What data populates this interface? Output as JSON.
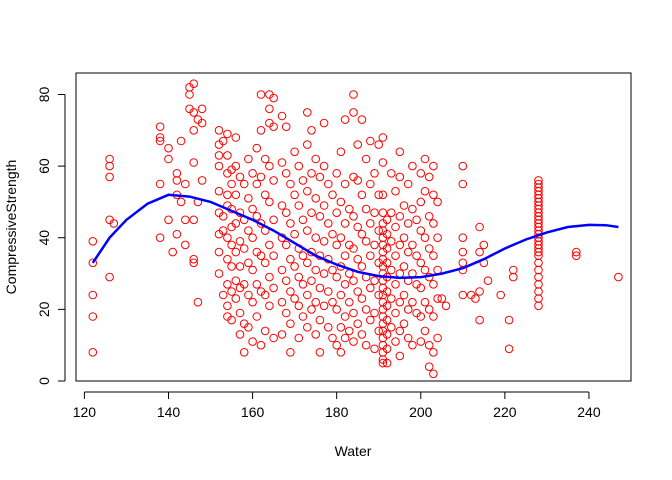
{
  "chart_data": {
    "type": "scatter",
    "xlabel": "Water",
    "ylabel": "CompressiveStrength",
    "xlim": [
      118,
      250
    ],
    "ylim": [
      0,
      86
    ],
    "xticks": [
      120,
      140,
      160,
      180,
      200,
      220,
      240
    ],
    "yticks": [
      0,
      20,
      40,
      60,
      80
    ],
    "point_color": "#ff0000",
    "line_color": "#0000ff",
    "grid": false,
    "smooth_curve": {
      "x": [
        122,
        126,
        130,
        135,
        140,
        145,
        150,
        155,
        160,
        165,
        170,
        175,
        180,
        185,
        190,
        195,
        200,
        205,
        210,
        215,
        220,
        225,
        230,
        235,
        240,
        244,
        247
      ],
      "y": [
        33,
        40,
        45,
        49.5,
        52,
        51.5,
        50,
        47.5,
        45,
        42,
        38.5,
        35,
        32.5,
        30.5,
        29.3,
        28.8,
        29,
        30,
        31.5,
        34,
        37,
        39.5,
        41.5,
        43,
        43.6,
        43.5,
        43
      ]
    },
    "points": [
      [
        122,
        39
      ],
      [
        122,
        33
      ],
      [
        122,
        24
      ],
      [
        122,
        18
      ],
      [
        122,
        8
      ],
      [
        126,
        62
      ],
      [
        126,
        60
      ],
      [
        126,
        57
      ],
      [
        126,
        45
      ],
      [
        126,
        29
      ],
      [
        127,
        44
      ],
      [
        138,
        71
      ],
      [
        138,
        68
      ],
      [
        138,
        67
      ],
      [
        138,
        55
      ],
      [
        138,
        40
      ],
      [
        140,
        65
      ],
      [
        140,
        62
      ],
      [
        140,
        45
      ],
      [
        141,
        36
      ],
      [
        142,
        58
      ],
      [
        142,
        56
      ],
      [
        142,
        52
      ],
      [
        142,
        41
      ],
      [
        143,
        67
      ],
      [
        143,
        50
      ],
      [
        144,
        55
      ],
      [
        144,
        45
      ],
      [
        144,
        38
      ],
      [
        145,
        82
      ],
      [
        145,
        80
      ],
      [
        145,
        76
      ],
      [
        146,
        83
      ],
      [
        146,
        75
      ],
      [
        146,
        70
      ],
      [
        146,
        61
      ],
      [
        146,
        45
      ],
      [
        146,
        34
      ],
      [
        146,
        33
      ],
      [
        147,
        73
      ],
      [
        147,
        50
      ],
      [
        147,
        22
      ],
      [
        148,
        76
      ],
      [
        148,
        72
      ],
      [
        148,
        56
      ],
      [
        152,
        70
      ],
      [
        152,
        66
      ],
      [
        152,
        63
      ],
      [
        152,
        60
      ],
      [
        152,
        53
      ],
      [
        152,
        47
      ],
      [
        152,
        41
      ],
      [
        152,
        36
      ],
      [
        152,
        30
      ],
      [
        153,
        67
      ],
      [
        153,
        46
      ],
      [
        153,
        42
      ],
      [
        153,
        24
      ],
      [
        154,
        69
      ],
      [
        154,
        63
      ],
      [
        154,
        58
      ],
      [
        154,
        52
      ],
      [
        154,
        49
      ],
      [
        154,
        40
      ],
      [
        154,
        34
      ],
      [
        154,
        27
      ],
      [
        154,
        21
      ],
      [
        154,
        18
      ],
      [
        155,
        59
      ],
      [
        155,
        55
      ],
      [
        155,
        48
      ],
      [
        155,
        43
      ],
      [
        155,
        38
      ],
      [
        155,
        32
      ],
      [
        155,
        25
      ],
      [
        155,
        17
      ],
      [
        156,
        68
      ],
      [
        156,
        60
      ],
      [
        156,
        52
      ],
      [
        156,
        44
      ],
      [
        156,
        36
      ],
      [
        156,
        28
      ],
      [
        156,
        23
      ],
      [
        157,
        57
      ],
      [
        157,
        47
      ],
      [
        157,
        39
      ],
      [
        157,
        32
      ],
      [
        157,
        26
      ],
      [
        157,
        19
      ],
      [
        157,
        13
      ],
      [
        158,
        55
      ],
      [
        158,
        45
      ],
      [
        158,
        37
      ],
      [
        158,
        27
      ],
      [
        158,
        16
      ],
      [
        158,
        8
      ],
      [
        159,
        62
      ],
      [
        159,
        51
      ],
      [
        159,
        42
      ],
      [
        159,
        33
      ],
      [
        159,
        24
      ],
      [
        159,
        15
      ],
      [
        160,
        58
      ],
      [
        160,
        48
      ],
      [
        160,
        40
      ],
      [
        160,
        31
      ],
      [
        160,
        22
      ],
      [
        160,
        11
      ],
      [
        161,
        65
      ],
      [
        161,
        55
      ],
      [
        161,
        46
      ],
      [
        161,
        36
      ],
      [
        161,
        27
      ],
      [
        161,
        18
      ],
      [
        162,
        80
      ],
      [
        162,
        70
      ],
      [
        162,
        57
      ],
      [
        162,
        44
      ],
      [
        162,
        35
      ],
      [
        162,
        25
      ],
      [
        162,
        10
      ],
      [
        163,
        62
      ],
      [
        163,
        52
      ],
      [
        163,
        42
      ],
      [
        163,
        33
      ],
      [
        163,
        24
      ],
      [
        163,
        14
      ],
      [
        164,
        80
      ],
      [
        164,
        76
      ],
      [
        164,
        72
      ],
      [
        164,
        60
      ],
      [
        164,
        50
      ],
      [
        164,
        38
      ],
      [
        164,
        29
      ],
      [
        164,
        21
      ],
      [
        165,
        79
      ],
      [
        165,
        71
      ],
      [
        165,
        56
      ],
      [
        165,
        45
      ],
      [
        165,
        35
      ],
      [
        165,
        26
      ],
      [
        165,
        12
      ],
      [
        167,
        74
      ],
      [
        167,
        61
      ],
      [
        167,
        49
      ],
      [
        167,
        40
      ],
      [
        167,
        31
      ],
      [
        167,
        22
      ],
      [
        167,
        13
      ],
      [
        168,
        71
      ],
      [
        168,
        58
      ],
      [
        168,
        47
      ],
      [
        168,
        38
      ],
      [
        168,
        28
      ],
      [
        168,
        19
      ],
      [
        169,
        55
      ],
      [
        169,
        44
      ],
      [
        169,
        34
      ],
      [
        169,
        25
      ],
      [
        169,
        16
      ],
      [
        169,
        8
      ],
      [
        170,
        64
      ],
      [
        170,
        52
      ],
      [
        170,
        41
      ],
      [
        170,
        32
      ],
      [
        170,
        23
      ],
      [
        171,
        60
      ],
      [
        171,
        49
      ],
      [
        171,
        37
      ],
      [
        171,
        29
      ],
      [
        171,
        21
      ],
      [
        171,
        12
      ],
      [
        172,
        56
      ],
      [
        172,
        45
      ],
      [
        172,
        35
      ],
      [
        172,
        27
      ],
      [
        172,
        18
      ],
      [
        173,
        75
      ],
      [
        173,
        66
      ],
      [
        173,
        53
      ],
      [
        173,
        42
      ],
      [
        173,
        33
      ],
      [
        173,
        24
      ],
      [
        173,
        15
      ],
      [
        174,
        70
      ],
      [
        174,
        58
      ],
      [
        174,
        47
      ],
      [
        174,
        36
      ],
      [
        174,
        28
      ],
      [
        174,
        20
      ],
      [
        175,
        62
      ],
      [
        175,
        51
      ],
      [
        175,
        40
      ],
      [
        175,
        31
      ],
      [
        175,
        22
      ],
      [
        175,
        13
      ],
      [
        176,
        57
      ],
      [
        176,
        46
      ],
      [
        176,
        35
      ],
      [
        176,
        26
      ],
      [
        176,
        17
      ],
      [
        176,
        8
      ],
      [
        177,
        72
      ],
      [
        177,
        60
      ],
      [
        177,
        49
      ],
      [
        177,
        39
      ],
      [
        177,
        30
      ],
      [
        177,
        21
      ],
      [
        178,
        55
      ],
      [
        178,
        44
      ],
      [
        178,
        34
      ],
      [
        178,
        25
      ],
      [
        178,
        15
      ],
      [
        179,
        52
      ],
      [
        179,
        41
      ],
      [
        179,
        31
      ],
      [
        179,
        22
      ],
      [
        179,
        12
      ],
      [
        180,
        58
      ],
      [
        180,
        47
      ],
      [
        180,
        38
      ],
      [
        180,
        29
      ],
      [
        180,
        20
      ],
      [
        180,
        10
      ],
      [
        181,
        64
      ],
      [
        181,
        50
      ],
      [
        181,
        40
      ],
      [
        181,
        32
      ],
      [
        181,
        24
      ],
      [
        181,
        15
      ],
      [
        181,
        8
      ],
      [
        182,
        73
      ],
      [
        182,
        55
      ],
      [
        182,
        44
      ],
      [
        182,
        35
      ],
      [
        182,
        27
      ],
      [
        182,
        18
      ],
      [
        182,
        12
      ],
      [
        183,
        48
      ],
      [
        183,
        38
      ],
      [
        183,
        30
      ],
      [
        183,
        22
      ],
      [
        183,
        14
      ],
      [
        184,
        80
      ],
      [
        184,
        75
      ],
      [
        184,
        57
      ],
      [
        184,
        46
      ],
      [
        184,
        37
      ],
      [
        184,
        28
      ],
      [
        184,
        19
      ],
      [
        184,
        11
      ],
      [
        185,
        66
      ],
      [
        185,
        56
      ],
      [
        185,
        43
      ],
      [
        185,
        34
      ],
      [
        185,
        25
      ],
      [
        185,
        16
      ],
      [
        186,
        73
      ],
      [
        186,
        52
      ],
      [
        186,
        41
      ],
      [
        186,
        32
      ],
      [
        186,
        23
      ],
      [
        186,
        13
      ],
      [
        187,
        62
      ],
      [
        187,
        48
      ],
      [
        187,
        39
      ],
      [
        187,
        29
      ],
      [
        187,
        20
      ],
      [
        187,
        10
      ],
      [
        188,
        67
      ],
      [
        188,
        55
      ],
      [
        188,
        44
      ],
      [
        188,
        35
      ],
      [
        188,
        26
      ],
      [
        188,
        17
      ],
      [
        189,
        58
      ],
      [
        189,
        47
      ],
      [
        189,
        38
      ],
      [
        189,
        28
      ],
      [
        189,
        19
      ],
      [
        189,
        9
      ],
      [
        190,
        66
      ],
      [
        190,
        52
      ],
      [
        190,
        42
      ],
      [
        190,
        33
      ],
      [
        190,
        24
      ],
      [
        190,
        14
      ],
      [
        191,
        68
      ],
      [
        191,
        61
      ],
      [
        191,
        52
      ],
      [
        191,
        47
      ],
      [
        191,
        44
      ],
      [
        191,
        42
      ],
      [
        191,
        40
      ],
      [
        191,
        38
      ],
      [
        191,
        36
      ],
      [
        191,
        34
      ],
      [
        191,
        32
      ],
      [
        191,
        30
      ],
      [
        191,
        28
      ],
      [
        191,
        26
      ],
      [
        191,
        24
      ],
      [
        191,
        22
      ],
      [
        191,
        20
      ],
      [
        191,
        18
      ],
      [
        191,
        16
      ],
      [
        191,
        14
      ],
      [
        191,
        12
      ],
      [
        191,
        10
      ],
      [
        191,
        8
      ],
      [
        191,
        6
      ],
      [
        191,
        5
      ],
      [
        192,
        45
      ],
      [
        192,
        41
      ],
      [
        192,
        37
      ],
      [
        192,
        33
      ],
      [
        192,
        29
      ],
      [
        192,
        25
      ],
      [
        192,
        21
      ],
      [
        192,
        17
      ],
      [
        192,
        13
      ],
      [
        192,
        9
      ],
      [
        192,
        5
      ],
      [
        193,
        58
      ],
      [
        193,
        47
      ],
      [
        193,
        39
      ],
      [
        193,
        31
      ],
      [
        193,
        23
      ],
      [
        193,
        15
      ],
      [
        194,
        53
      ],
      [
        194,
        43
      ],
      [
        194,
        35
      ],
      [
        194,
        27
      ],
      [
        194,
        19
      ],
      [
        194,
        11
      ],
      [
        195,
        64
      ],
      [
        195,
        57
      ],
      [
        195,
        46
      ],
      [
        195,
        38
      ],
      [
        195,
        30
      ],
      [
        195,
        22
      ],
      [
        195,
        14
      ],
      [
        195,
        7
      ],
      [
        196,
        49
      ],
      [
        196,
        40
      ],
      [
        196,
        32
      ],
      [
        196,
        24
      ],
      [
        196,
        16
      ],
      [
        197,
        55
      ],
      [
        197,
        44
      ],
      [
        197,
        36
      ],
      [
        197,
        28
      ],
      [
        197,
        20
      ],
      [
        197,
        12
      ],
      [
        198,
        60
      ],
      [
        198,
        48
      ],
      [
        198,
        38
      ],
      [
        198,
        30
      ],
      [
        198,
        22
      ],
      [
        198,
        10
      ],
      [
        199,
        45
      ],
      [
        199,
        35
      ],
      [
        199,
        27
      ],
      [
        199,
        19
      ],
      [
        200,
        58
      ],
      [
        200,
        50
      ],
      [
        200,
        42
      ],
      [
        200,
        33
      ],
      [
        200,
        26
      ],
      [
        200,
        18
      ],
      [
        200,
        11
      ],
      [
        201,
        62
      ],
      [
        201,
        53
      ],
      [
        201,
        40
      ],
      [
        201,
        31
      ],
      [
        201,
        22
      ],
      [
        201,
        14
      ],
      [
        202,
        57
      ],
      [
        202,
        46
      ],
      [
        202,
        37
      ],
      [
        202,
        29
      ],
      [
        202,
        20
      ],
      [
        202,
        10
      ],
      [
        202,
        4
      ],
      [
        203,
        60
      ],
      [
        203,
        52
      ],
      [
        203,
        44
      ],
      [
        203,
        35
      ],
      [
        203,
        27
      ],
      [
        203,
        18
      ],
      [
        203,
        8
      ],
      [
        203,
        2
      ],
      [
        204,
        50
      ],
      [
        204,
        40
      ],
      [
        204,
        31
      ],
      [
        204,
        23
      ],
      [
        204,
        12
      ],
      [
        205,
        23
      ],
      [
        206,
        21
      ],
      [
        210,
        60
      ],
      [
        210,
        55
      ],
      [
        210,
        40
      ],
      [
        210,
        36
      ],
      [
        210,
        33
      ],
      [
        210,
        31
      ],
      [
        210,
        24
      ],
      [
        212,
        24
      ],
      [
        213,
        23
      ],
      [
        214,
        43
      ],
      [
        214,
        36
      ],
      [
        214,
        25
      ],
      [
        214,
        17
      ],
      [
        215,
        38
      ],
      [
        215,
        33
      ],
      [
        216,
        28
      ],
      [
        219,
        24
      ],
      [
        221,
        17
      ],
      [
        221,
        9
      ],
      [
        222,
        31
      ],
      [
        222,
        29
      ],
      [
        228,
        56
      ],
      [
        228,
        55
      ],
      [
        228,
        54
      ],
      [
        228,
        53
      ],
      [
        228,
        52
      ],
      [
        228,
        51
      ],
      [
        228,
        50
      ],
      [
        228,
        49
      ],
      [
        228,
        48
      ],
      [
        228,
        47
      ],
      [
        228,
        46
      ],
      [
        228,
        45
      ],
      [
        228,
        44
      ],
      [
        228,
        43
      ],
      [
        228,
        42
      ],
      [
        228,
        41
      ],
      [
        228,
        40
      ],
      [
        228,
        39
      ],
      [
        228,
        38
      ],
      [
        228,
        37
      ],
      [
        228,
        36
      ],
      [
        228,
        35
      ],
      [
        228,
        33
      ],
      [
        228,
        31
      ],
      [
        228,
        29
      ],
      [
        228,
        27
      ],
      [
        228,
        25
      ],
      [
        228,
        23
      ],
      [
        228,
        21
      ],
      [
        237,
        35
      ],
      [
        237,
        36
      ],
      [
        247,
        29
      ]
    ]
  }
}
